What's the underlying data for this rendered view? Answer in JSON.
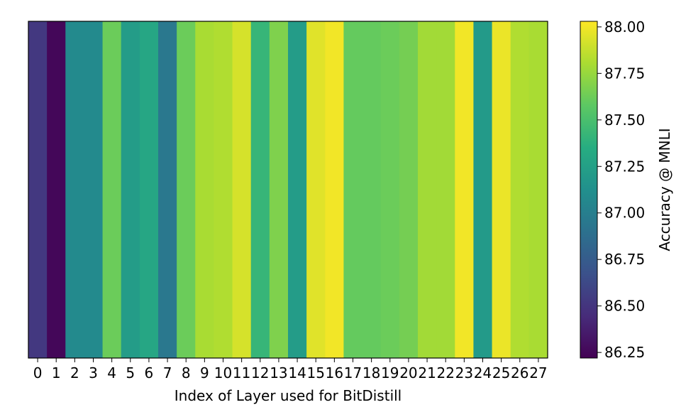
{
  "chart_data": {
    "type": "heatmap",
    "title": "",
    "xlabel": "Index of Layer used for BitDistill",
    "colorbar_label": "Accuracy @ MNLI",
    "colormap": "viridis",
    "categories": [
      "0",
      "1",
      "2",
      "3",
      "4",
      "5",
      "6",
      "7",
      "8",
      "9",
      "10",
      "11",
      "12",
      "13",
      "14",
      "15",
      "16",
      "17",
      "18",
      "19",
      "20",
      "21",
      "22",
      "23",
      "24",
      "25",
      "26",
      "27"
    ],
    "values": [
      86.52,
      86.25,
      87.08,
      87.08,
      87.62,
      87.22,
      87.3,
      86.95,
      87.62,
      87.8,
      87.82,
      87.92,
      87.42,
      87.68,
      87.22,
      87.95,
      88.0,
      87.6,
      87.6,
      87.62,
      87.65,
      87.78,
      87.78,
      88.0,
      87.2,
      87.98,
      87.82,
      87.8
    ],
    "colorbar_range": [
      86.22,
      88.03
    ],
    "colorbar_ticks": [
      "86.25",
      "86.50",
      "86.75",
      "87.00",
      "87.25",
      "87.50",
      "87.75",
      "88.00"
    ],
    "grid": false,
    "legend": "colorbar-right"
  }
}
